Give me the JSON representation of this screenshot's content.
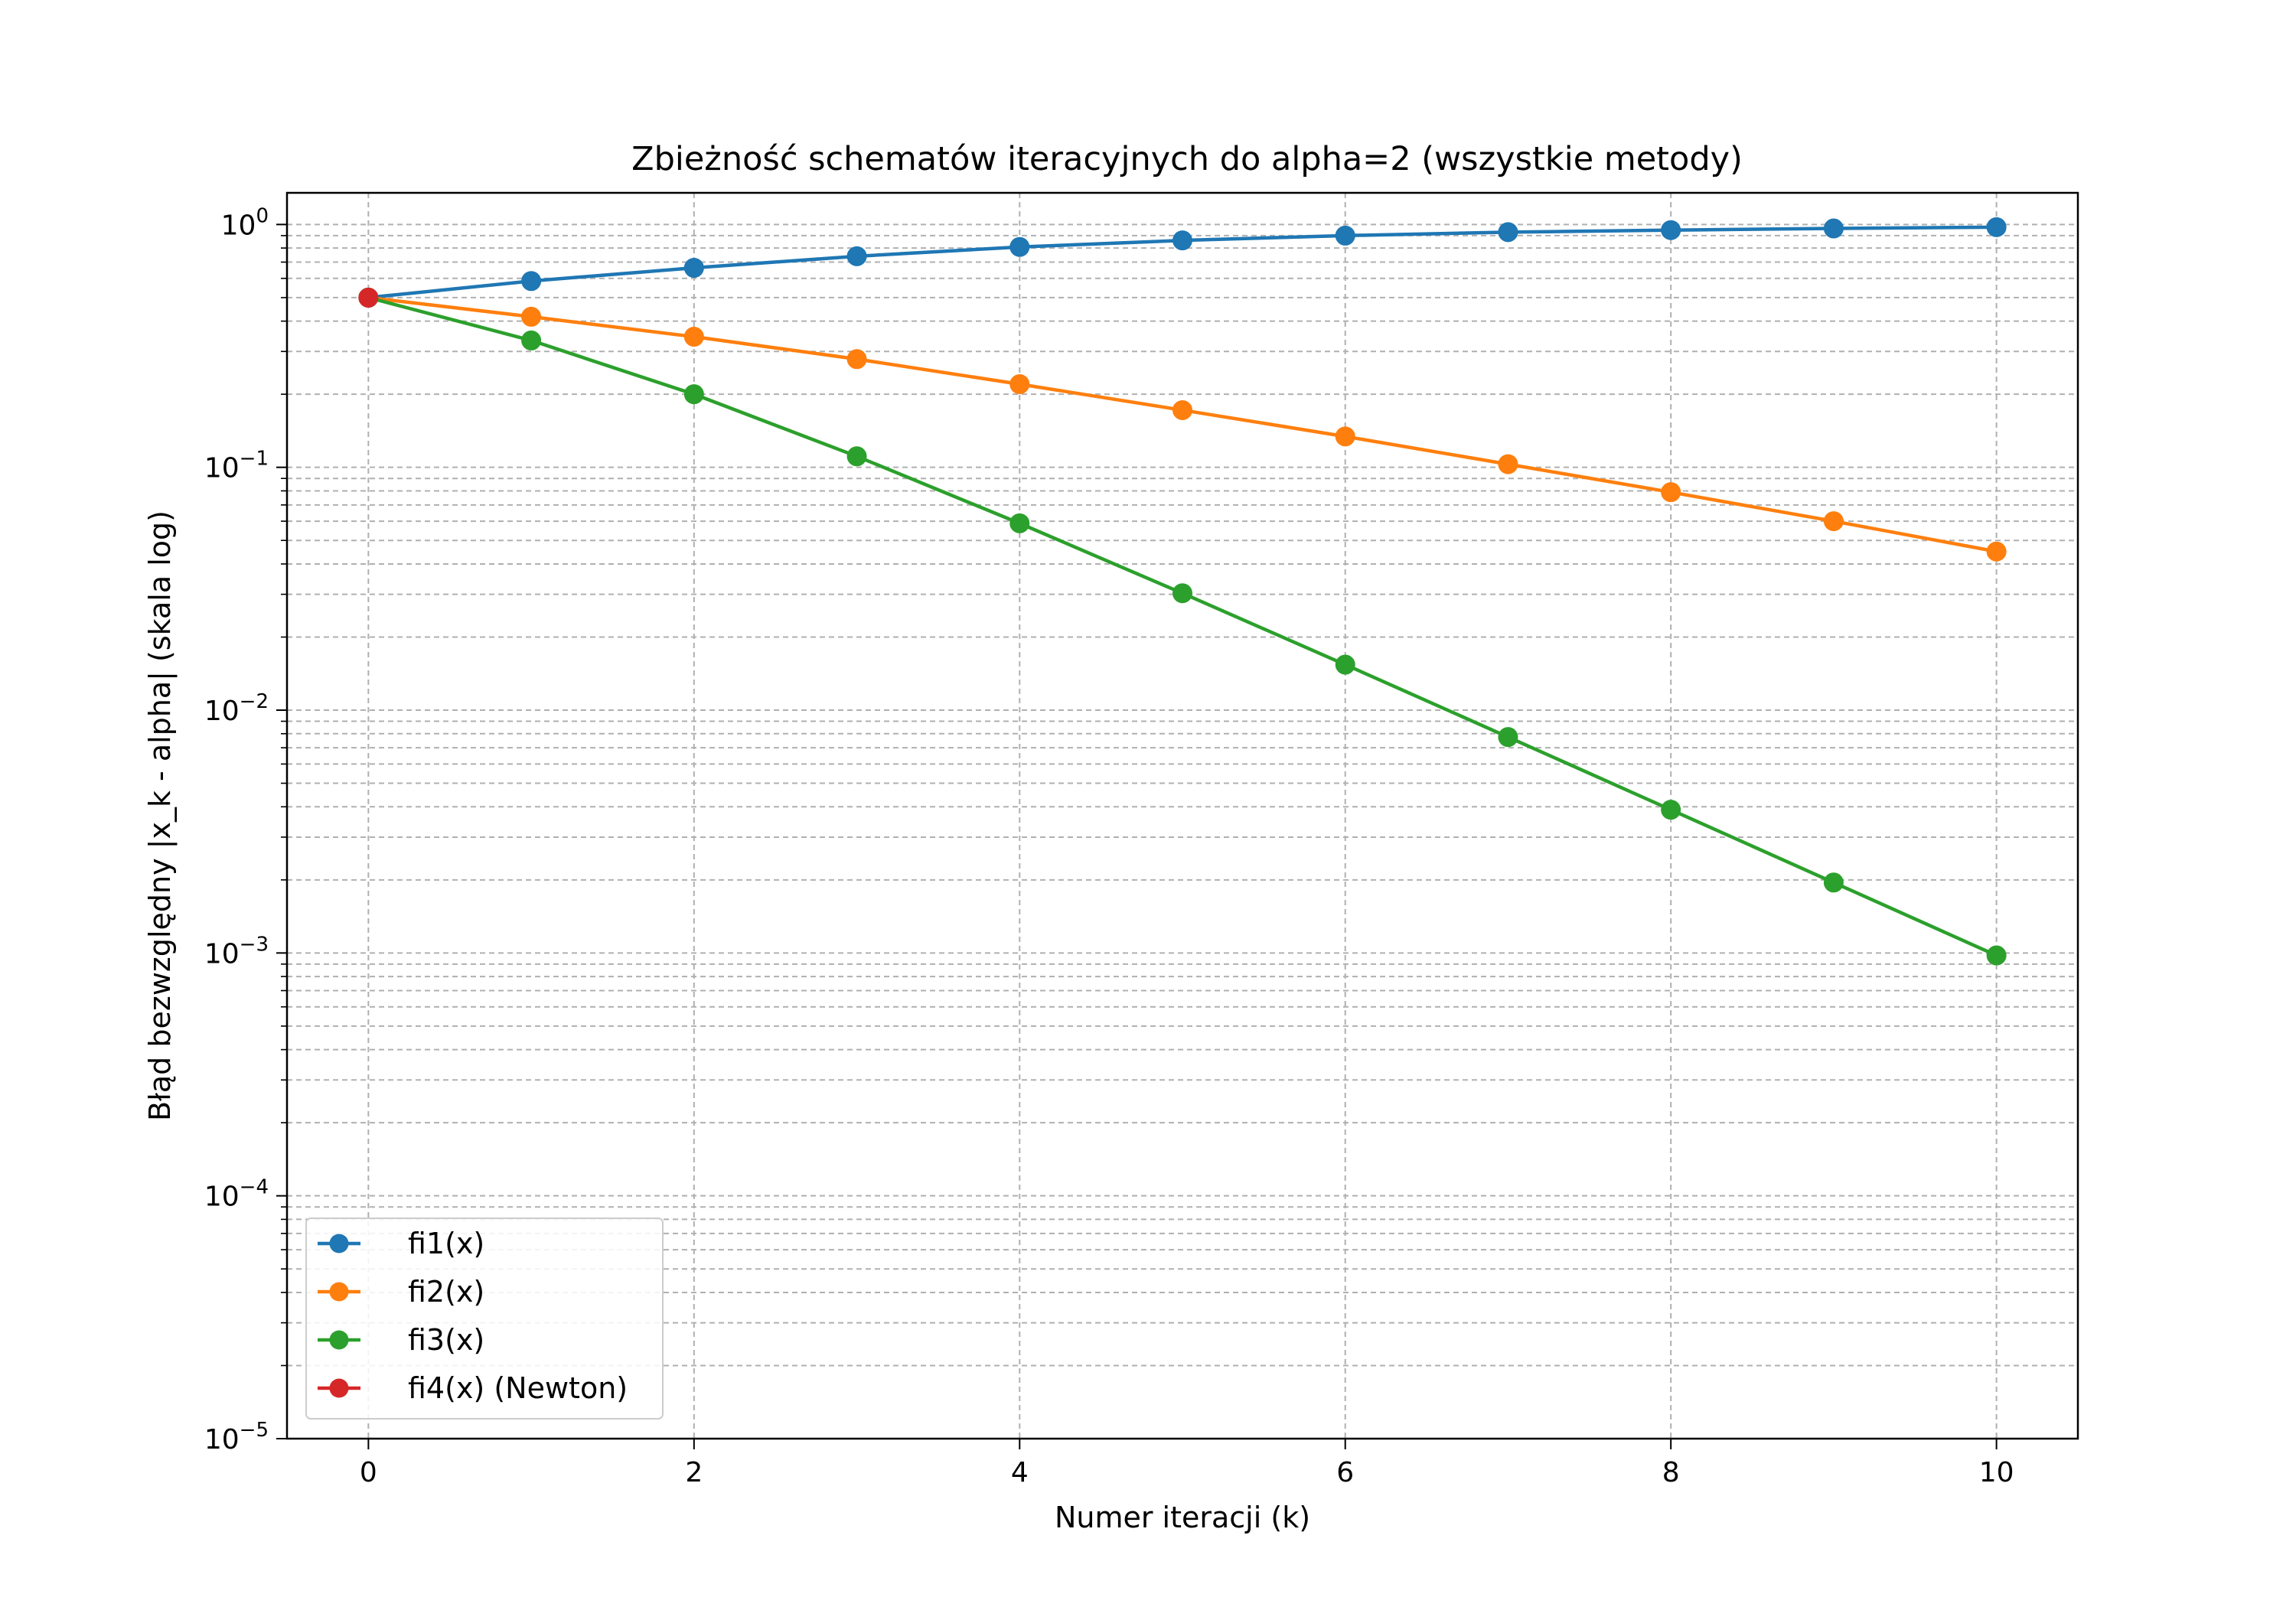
{
  "chart_data": {
    "type": "line",
    "title": "Zbieżność schematów iteracyjnych do alpha=2 (wszystkie metody)",
    "xlabel": "Numer iteracji (k)",
    "ylabel": "Błąd bezwzględny |x_k - alpha| (skala log)",
    "xlim": [
      -0.5,
      10.5
    ],
    "ylim": [
      1e-05,
      1.35
    ],
    "yscale": "log",
    "grid": true,
    "legend_position": "lower-left",
    "x_ticks": [
      0,
      2,
      4,
      6,
      8,
      10
    ],
    "x_tick_labels": [
      "0",
      "2",
      "4",
      "6",
      "8",
      "10"
    ],
    "y_ticks": [
      1e-05,
      0.0001,
      0.001,
      0.01,
      0.1,
      1
    ],
    "y_tick_labels": [
      {
        "base": "10",
        "exp": "−5"
      },
      {
        "base": "10",
        "exp": "−4"
      },
      {
        "base": "10",
        "exp": "−3"
      },
      {
        "base": "10",
        "exp": "−2"
      },
      {
        "base": "10",
        "exp": "−1"
      },
      {
        "base": "10",
        "exp": "0"
      }
    ],
    "series": [
      {
        "name": "fi1(x)",
        "color": "#1f77b4",
        "x": [
          0,
          1,
          2,
          3,
          4,
          5,
          6,
          7,
          8,
          9,
          10
        ],
        "values": [
          0.5,
          0.585,
          0.663,
          0.74,
          0.808,
          0.86,
          0.9,
          0.93,
          0.948,
          0.963,
          0.975
        ]
      },
      {
        "name": "fi2(x)",
        "color": "#ff7f0e",
        "x": [
          0,
          1,
          2,
          3,
          4,
          5,
          6,
          7,
          8,
          9,
          10
        ],
        "values": [
          0.5,
          0.417,
          0.345,
          0.279,
          0.22,
          0.172,
          0.134,
          0.103,
          0.079,
          0.06,
          0.045
        ]
      },
      {
        "name": "fi3(x)",
        "color": "#2ca02c",
        "x": [
          0,
          1,
          2,
          3,
          4,
          5,
          6,
          7,
          8,
          9,
          10
        ],
        "values": [
          0.5,
          0.333,
          0.2,
          0.111,
          0.0588,
          0.0303,
          0.0154,
          0.00775,
          0.00389,
          0.00195,
          0.000977
        ]
      },
      {
        "name": "fi4(x) (Newton)",
        "color": "#d62728",
        "x": [
          0
        ],
        "values": [
          0.5
        ]
      }
    ]
  }
}
